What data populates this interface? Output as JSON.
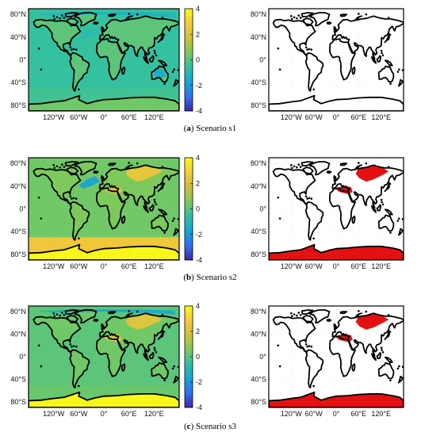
{
  "figure": {
    "panels": [
      {
        "letter": "a",
        "caption": "Scenario s1"
      },
      {
        "letter": "b",
        "caption": "Scenario s2"
      },
      {
        "letter": "c",
        "caption": "Scenario s3"
      }
    ]
  },
  "colors": {
    "colormap": [
      "#3e26a8",
      "#2f6ff0",
      "#14a5d8",
      "#2fc0a4",
      "#7bc95c",
      "#cfc03a",
      "#f9c93a",
      "#f9fb15"
    ],
    "ocean_s1": "#45b795",
    "land_s1": "#55bc86",
    "ocean_s2": "#5fbe7c",
    "ocean_s3": "#54bc85",
    "south_ocean": "#cdbb45",
    "antarctica": "#f7f51d",
    "hotspot": "#e6b43c",
    "coldspot": "#2f86e0",
    "mask_fill": "#e41010",
    "coast": "#000000"
  },
  "chart_data": [
    {
      "type": "heatmap",
      "panel": "a-left",
      "title": "",
      "xlabel": "",
      "ylabel": "",
      "x_ticks": [
        "120°W",
        "60°W",
        "0°",
        "60°E",
        "120°E"
      ],
      "x_tick_values": [
        -120,
        -60,
        0,
        60,
        120
      ],
      "y_ticks": [
        "80°N",
        "40°N",
        "0°",
        "40°S",
        "80°S"
      ],
      "y_tick_values": [
        80,
        40,
        0,
        -40,
        -80
      ],
      "xlim": [
        -180,
        180
      ],
      "ylim": [
        -90,
        90
      ],
      "colorbar": {
        "ticks": [
          "4",
          "2",
          "0",
          "-2",
          "-4"
        ],
        "tick_values": [
          4,
          2,
          0,
          -2,
          -4
        ],
        "range": [
          -4,
          4
        ]
      },
      "field": {
        "ocean": -0.5,
        "land": 0.1,
        "southern_ocean": -0.3,
        "antarctica": 0.4,
        "anomalies": [
          {
            "region": "Arctic",
            "value": -1.2
          },
          {
            "region": "Australia",
            "value": -1.5
          },
          {
            "region": "North Atlantic",
            "value": -0.8
          }
        ]
      }
    },
    {
      "type": "heatmap",
      "panel": "a-right",
      "title": "",
      "xlabel": "",
      "ylabel": "",
      "x_ticks": [
        "120°W",
        "60°W",
        "0°",
        "60°E",
        "120°E"
      ],
      "x_tick_values": [
        -120,
        -60,
        0,
        60,
        120
      ],
      "y_ticks": [
        "80°N",
        "40°N",
        "0°",
        "40°S",
        "80°S"
      ],
      "y_tick_values": [
        80,
        40,
        0,
        -40,
        -80
      ],
      "xlim": [
        -180,
        180
      ],
      "ylim": [
        -90,
        90
      ],
      "significant_regions": []
    },
    {
      "type": "heatmap",
      "panel": "b-left",
      "title": "",
      "xlabel": "",
      "ylabel": "",
      "x_ticks": [
        "120°W",
        "60°W",
        "0°",
        "60°E",
        "120°E"
      ],
      "x_tick_values": [
        -120,
        -60,
        0,
        60,
        120
      ],
      "y_ticks": [
        "80°N",
        "40°N",
        "0°",
        "40°S",
        "80°S"
      ],
      "y_tick_values": [
        80,
        40,
        0,
        -40,
        -80
      ],
      "xlim": [
        -180,
        180
      ],
      "ylim": [
        -90,
        90
      ],
      "colorbar": {
        "ticks": [
          "4",
          "2",
          "0",
          "-2",
          "-4"
        ],
        "tick_values": [
          4,
          2,
          0,
          -2,
          -4
        ],
        "range": [
          -4,
          4
        ]
      },
      "field": {
        "ocean": 0.4,
        "land": 0.6,
        "southern_ocean": 2.6,
        "antarctica": 3.9,
        "anomalies": [
          {
            "region": "Siberia",
            "value": 2.6
          },
          {
            "region": "Mediterranean",
            "value": 2.3
          },
          {
            "region": "North Atlantic",
            "value": -1.8
          }
        ]
      }
    },
    {
      "type": "heatmap",
      "panel": "b-right",
      "title": "",
      "xlabel": "",
      "ylabel": "",
      "x_ticks": [
        "120°W",
        "60°W",
        "0°",
        "60°E",
        "120°E"
      ],
      "x_tick_values": [
        -120,
        -60,
        0,
        60,
        120
      ],
      "y_ticks": [
        "80°N",
        "40°N",
        "0°",
        "40°S",
        "80°S"
      ],
      "y_tick_values": [
        80,
        40,
        0,
        -40,
        -80
      ],
      "xlim": [
        -180,
        180
      ],
      "ylim": [
        -90,
        90
      ],
      "significant_regions": [
        "Antarctica",
        "Siberia",
        "Mediterranean"
      ]
    },
    {
      "type": "heatmap",
      "panel": "c-left",
      "title": "",
      "xlabel": "",
      "ylabel": "",
      "x_ticks": [
        "120°W",
        "60°W",
        "0°",
        "60°E",
        "120°E"
      ],
      "x_tick_values": [
        -120,
        -60,
        0,
        60,
        120
      ],
      "y_ticks": [
        "80°N",
        "40°N",
        "0°",
        "40°S",
        "80°S"
      ],
      "y_tick_values": [
        80,
        40,
        0,
        -40,
        -80
      ],
      "xlim": [
        -180,
        180
      ],
      "ylim": [
        -90,
        90
      ],
      "colorbar": {
        "ticks": [
          "4",
          "2",
          "0",
          "-2",
          "-4"
        ],
        "tick_values": [
          4,
          2,
          0,
          -2,
          -4
        ],
        "range": [
          -4,
          4
        ]
      },
      "field": {
        "ocean": 0.1,
        "land": 0.4,
        "southern_ocean": 0.3,
        "antarctica": 3.9,
        "anomalies": [
          {
            "region": "Siberia",
            "value": 2.4
          },
          {
            "region": "Mediterranean",
            "value": 2.2
          },
          {
            "region": "Arctic",
            "value": -1.6
          }
        ]
      }
    },
    {
      "type": "heatmap",
      "panel": "c-right",
      "title": "",
      "xlabel": "",
      "ylabel": "",
      "x_ticks": [
        "120°W",
        "60°W",
        "0°",
        "60°E",
        "120°E"
      ],
      "x_tick_values": [
        -120,
        -60,
        0,
        60,
        120
      ],
      "y_ticks": [
        "80°N",
        "40°N",
        "0°",
        "40°S",
        "80°S"
      ],
      "y_tick_values": [
        80,
        40,
        0,
        -40,
        -80
      ],
      "xlim": [
        -180,
        180
      ],
      "ylim": [
        -90,
        90
      ],
      "significant_regions": [
        "Antarctica",
        "Siberia",
        "Mediterranean"
      ]
    }
  ]
}
